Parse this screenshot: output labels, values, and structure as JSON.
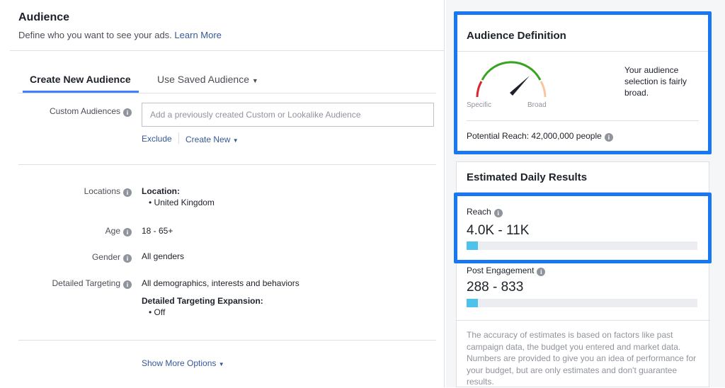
{
  "audience": {
    "title": "Audience",
    "subtitle": "Define who you want to see your ads.",
    "learn_more": "Learn More"
  },
  "tabs": [
    {
      "label": "Create New Audience",
      "active": true
    },
    {
      "label": "Use Saved Audience",
      "active": false
    }
  ],
  "custom_audiences": {
    "label": "Custom Audiences",
    "placeholder": "Add a previously created Custom or Lookalike Audience",
    "exclude": "Exclude",
    "create_new": "Create New"
  },
  "locations": {
    "label": "Locations",
    "heading": "Location:",
    "items": [
      "United Kingdom"
    ]
  },
  "age": {
    "label": "Age",
    "value": "18 - 65+"
  },
  "gender": {
    "label": "Gender",
    "value": "All genders"
  },
  "detailed_targeting": {
    "label": "Detailed Targeting",
    "value": "All demographics, interests and behaviors",
    "expansion_heading": "Detailed Targeting Expansion:",
    "expansion_items": [
      "Off"
    ]
  },
  "show_more": "Show More Options",
  "definition": {
    "title": "Audience Definition",
    "specific": "Specific",
    "broad": "Broad",
    "message": "Your audience selection is fairly broad.",
    "potential_reach": "Potential Reach: 42,000,000 people",
    "gauge_level": 0.7
  },
  "estimated": {
    "title": "Estimated Daily Results",
    "reach": {
      "label": "Reach",
      "value": "4.0K - 11K",
      "fill_percent": 5
    },
    "engagement": {
      "label": "Post Engagement",
      "value": "288 - 833",
      "fill_percent": 5
    },
    "disclaimer": "The accuracy of estimates is based on factors like past campaign data, the budget you entered and market data. Numbers are provided to give you an idea of performance for your budget, but are only estimates and don't guarantee results."
  },
  "colors": {
    "accent": "#1877f2",
    "link": "#365899",
    "bar": "#4dc2ea"
  }
}
